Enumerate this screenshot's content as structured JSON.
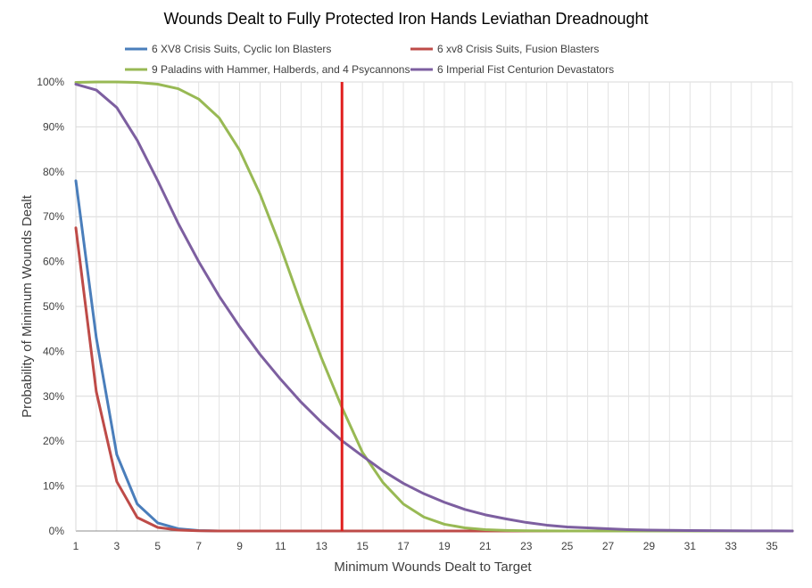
{
  "chart_data": {
    "type": "line",
    "title": "Wounds Dealt to Fully Protected Iron Hands Leviathan Dreadnought",
    "xlabel": "Minimum Wounds Dealt  to Target",
    "ylabel": "Probability of Minimum Wounds Dealt",
    "xlim": [
      1,
      36
    ],
    "ylim": [
      0,
      1
    ],
    "x": [
      1,
      2,
      3,
      4,
      5,
      6,
      7,
      8,
      9,
      10,
      11,
      12,
      13,
      14,
      15,
      16,
      17,
      18,
      19,
      20,
      21,
      22,
      23,
      24,
      25,
      26,
      27,
      28,
      29,
      30,
      31,
      32,
      33,
      34,
      35,
      36
    ],
    "x_tick_labels": [
      "1",
      "3",
      "5",
      "7",
      "9",
      "11",
      "13",
      "15",
      "17",
      "19",
      "21",
      "23",
      "25",
      "27",
      "29",
      "31",
      "33",
      "35"
    ],
    "y_tick_labels": [
      "0%",
      "10%",
      "20%",
      "30%",
      "40%",
      "50%",
      "60%",
      "70%",
      "80%",
      "90%",
      "100%"
    ],
    "grid": true,
    "legend_position": "top",
    "reference_line": {
      "x": 14,
      "color": "#e0201f"
    },
    "series": [
      {
        "name": "6 XV8 Crisis Suits, Cyclic Ion Blasters",
        "color": "#4a7ebb",
        "values": [
          0.78,
          0.43,
          0.17,
          0.06,
          0.018,
          0.005,
          0.001,
          0,
          0,
          0,
          0,
          0,
          0,
          0,
          0,
          0,
          0,
          0,
          0,
          0,
          0,
          0,
          0,
          0,
          0,
          0,
          0,
          0,
          0,
          0,
          0,
          0,
          0,
          0,
          0,
          0
        ]
      },
      {
        "name": "6 xv8 Crisis Suits, Fusion Blasters",
        "color": "#be4b48",
        "values": [
          0.675,
          0.31,
          0.11,
          0.03,
          0.008,
          0.002,
          0.0004,
          0,
          0,
          0,
          0,
          0,
          0,
          0,
          0,
          0,
          0,
          0,
          0,
          0,
          0,
          0,
          0,
          0,
          0,
          0,
          0,
          0,
          0,
          0,
          0,
          0,
          0,
          0,
          0,
          0
        ]
      },
      {
        "name": "9 Paladins with Hammer, Halberds, and 4 Psycannons",
        "color": "#98b954",
        "values": [
          0.999,
          1.0,
          1.0,
          0.999,
          0.995,
          0.985,
          0.962,
          0.92,
          0.848,
          0.75,
          0.633,
          0.505,
          0.385,
          0.275,
          0.175,
          0.108,
          0.06,
          0.031,
          0.015,
          0.007,
          0.003,
          0.0013,
          0.0005,
          0.0002,
          0.0001,
          0,
          0,
          0,
          0,
          0,
          0,
          0,
          0,
          0,
          0,
          0
        ]
      },
      {
        "name": "6 Imperial Fist Centurion Devastators",
        "color": "#7d5fa0",
        "values": [
          0.995,
          0.982,
          0.943,
          0.87,
          0.78,
          0.685,
          0.6,
          0.523,
          0.455,
          0.393,
          0.338,
          0.287,
          0.242,
          0.201,
          0.167,
          0.134,
          0.106,
          0.083,
          0.064,
          0.048,
          0.036,
          0.027,
          0.019,
          0.013,
          0.009,
          0.007,
          0.005,
          0.003,
          0.002,
          0.0015,
          0.001,
          0.0007,
          0.0005,
          0.0003,
          0.0002,
          0.0001
        ]
      }
    ]
  }
}
